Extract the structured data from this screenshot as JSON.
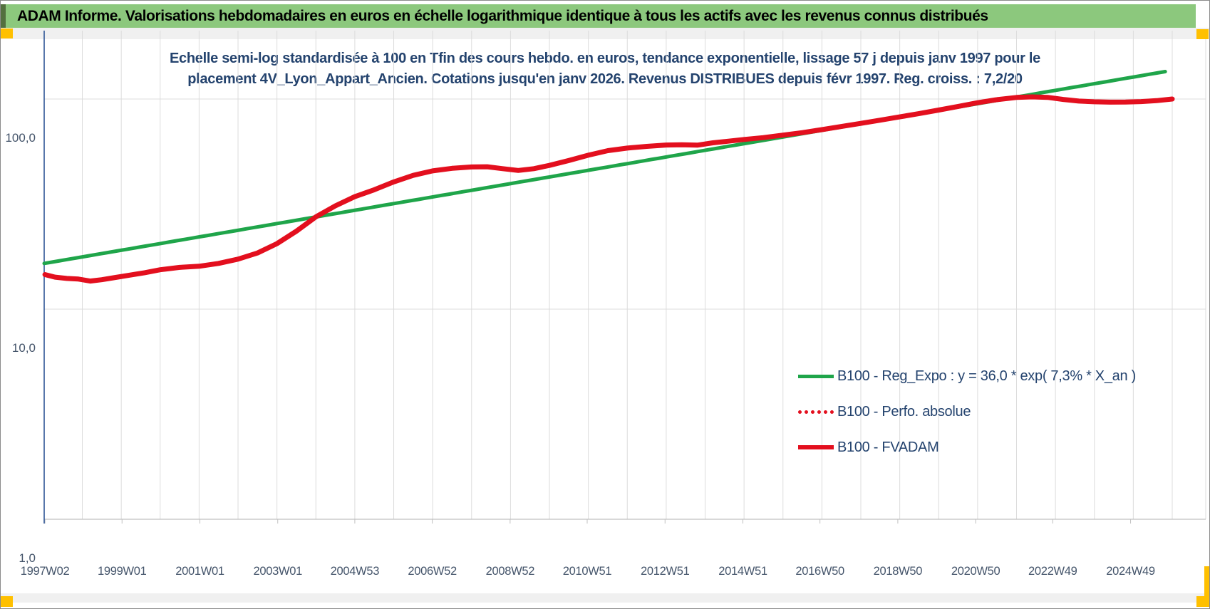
{
  "banner": {
    "text": "ADAM Informe. Valorisations hebdomadaires en euros en échelle logarithmique identique à tous les actifs avec les revenus connus distribués"
  },
  "colors": {
    "banner_bg": "#8CC87D",
    "title_text": "#24436E",
    "axis_text": "#44546A",
    "green": "#1FA54A",
    "red": "#E30F1E",
    "gridline": "#DCDCDC",
    "axis_line_vertical": "#2E5596",
    "axis_line_bottom": "#C0C0C0",
    "selection_handle": "#FFC000"
  },
  "chart_data": {
    "type": "line",
    "y_scale": "log10",
    "title_line1": "Echelle semi-log standardisée à 100 en Tfin des cours hebdo. en euros, tendance exponentielle, lissage 57 j depuis janv 1997 pour le",
    "title_line2": "placement 4V_Lyon_Appart_Ancien. Cotations jusqu'en janv 2026. Revenus DISTRIBUES depuis févr 1997. Reg. croiss. : 7,2/20",
    "xlabel": "",
    "ylabel": "",
    "ylim": [
      1,
      215
    ],
    "x_range_years": [
      1997.02,
      2026.0
    ],
    "grid": "vertical yearly + horizontal at decades",
    "legend_position": "inside lower right",
    "yticks": [
      {
        "label": "100,0",
        "value": 100
      },
      {
        "label": "10,0",
        "value": 10
      },
      {
        "label": "1,0",
        "value": 1
      }
    ],
    "xticks": [
      {
        "label": "1997W02",
        "year": 1997.04
      },
      {
        "label": "1999W01",
        "year": 1999.02
      },
      {
        "label": "2001W01",
        "year": 2001.02
      },
      {
        "label": "2003W01",
        "year": 2003.02
      },
      {
        "label": "2004W53",
        "year": 2005.0
      },
      {
        "label": "2006W52",
        "year": 2006.99
      },
      {
        "label": "2008W52",
        "year": 2008.99
      },
      {
        "label": "2010W51",
        "year": 2010.97
      },
      {
        "label": "2012W51",
        "year": 2012.97
      },
      {
        "label": "2014W51",
        "year": 2014.97
      },
      {
        "label": "2016W50",
        "year": 2016.95
      },
      {
        "label": "2018W50",
        "year": 2018.95
      },
      {
        "label": "2020W50",
        "year": 2020.95
      },
      {
        "label": "2022W49",
        "year": 2022.93
      },
      {
        "label": "2024W49",
        "year": 2024.93
      }
    ],
    "series": [
      {
        "id": "reg_expo",
        "name": "B100 - Reg_Expo : y = 36,0 * exp( 7,3% *  X_an )",
        "color": "green",
        "style": "solid",
        "width": 5,
        "model": {
          "type": "exponential",
          "value_at_start": 16.5,
          "annual_rate": 0.073,
          "start_year": 1997.02,
          "end_year": 2026.0
        }
      },
      {
        "id": "perfo_absolue",
        "name": "B100 - Perfo. absolue",
        "color": "red",
        "style": "dotted",
        "width": 3,
        "points": "same_as_fvadam",
        "note": "coincides with B100 - FVADAM curve (hidden underneath)"
      },
      {
        "id": "fvadam",
        "name": "B100 - FVADAM",
        "color": "red",
        "style": "solid",
        "width": 7,
        "points": [
          [
            1997.04,
            14.6
          ],
          [
            1997.3,
            14.2
          ],
          [
            1997.6,
            14.0
          ],
          [
            1997.9,
            13.9
          ],
          [
            1998.2,
            13.6
          ],
          [
            1998.5,
            13.8
          ],
          [
            1998.8,
            14.1
          ],
          [
            1999.2,
            14.5
          ],
          [
            1999.6,
            14.9
          ],
          [
            2000.0,
            15.4
          ],
          [
            2000.5,
            15.8
          ],
          [
            2001.0,
            16.0
          ],
          [
            2001.5,
            16.5
          ],
          [
            2002.0,
            17.3
          ],
          [
            2002.5,
            18.5
          ],
          [
            2003.0,
            20.5
          ],
          [
            2003.5,
            23.5
          ],
          [
            2004.0,
            27.5
          ],
          [
            2004.5,
            31.0
          ],
          [
            2005.0,
            34.3
          ],
          [
            2005.5,
            37.0
          ],
          [
            2006.0,
            40.3
          ],
          [
            2006.5,
            43.3
          ],
          [
            2007.0,
            45.5
          ],
          [
            2007.5,
            46.8
          ],
          [
            2008.0,
            47.5
          ],
          [
            2008.4,
            47.6
          ],
          [
            2008.8,
            46.6
          ],
          [
            2009.2,
            45.7
          ],
          [
            2009.6,
            46.6
          ],
          [
            2010.0,
            48.3
          ],
          [
            2010.5,
            51.0
          ],
          [
            2011.0,
            54.0
          ],
          [
            2011.5,
            56.8
          ],
          [
            2012.0,
            58.4
          ],
          [
            2012.5,
            59.5
          ],
          [
            2013.0,
            60.4
          ],
          [
            2013.4,
            60.6
          ],
          [
            2013.8,
            60.3
          ],
          [
            2014.2,
            61.9
          ],
          [
            2014.6,
            63.0
          ],
          [
            2015.0,
            64.2
          ],
          [
            2015.5,
            65.5
          ],
          [
            2016.0,
            67.3
          ],
          [
            2016.5,
            69.2
          ],
          [
            2017.0,
            71.5
          ],
          [
            2017.5,
            74.0
          ],
          [
            2018.0,
            76.6
          ],
          [
            2018.5,
            79.3
          ],
          [
            2019.0,
            82.2
          ],
          [
            2019.5,
            85.3
          ],
          [
            2020.0,
            88.6
          ],
          [
            2020.5,
            92.2
          ],
          [
            2021.0,
            96.0
          ],
          [
            2021.5,
            99.3
          ],
          [
            2022.0,
            101.7
          ],
          [
            2022.4,
            102.4
          ],
          [
            2022.8,
            101.8
          ],
          [
            2023.2,
            99.5
          ],
          [
            2023.6,
            97.8
          ],
          [
            2024.0,
            97.0
          ],
          [
            2024.4,
            96.6
          ],
          [
            2024.8,
            96.7
          ],
          [
            2025.2,
            97.2
          ],
          [
            2025.6,
            98.2
          ],
          [
            2026.0,
            100.0
          ]
        ]
      }
    ]
  },
  "legend": {
    "items": [
      {
        "label": "B100 - Reg_Expo : y = 36,0 * exp( 7,3% *  X_an )"
      },
      {
        "label": "B100 - Perfo. absolue"
      },
      {
        "label": "B100 - FVADAM"
      }
    ]
  }
}
